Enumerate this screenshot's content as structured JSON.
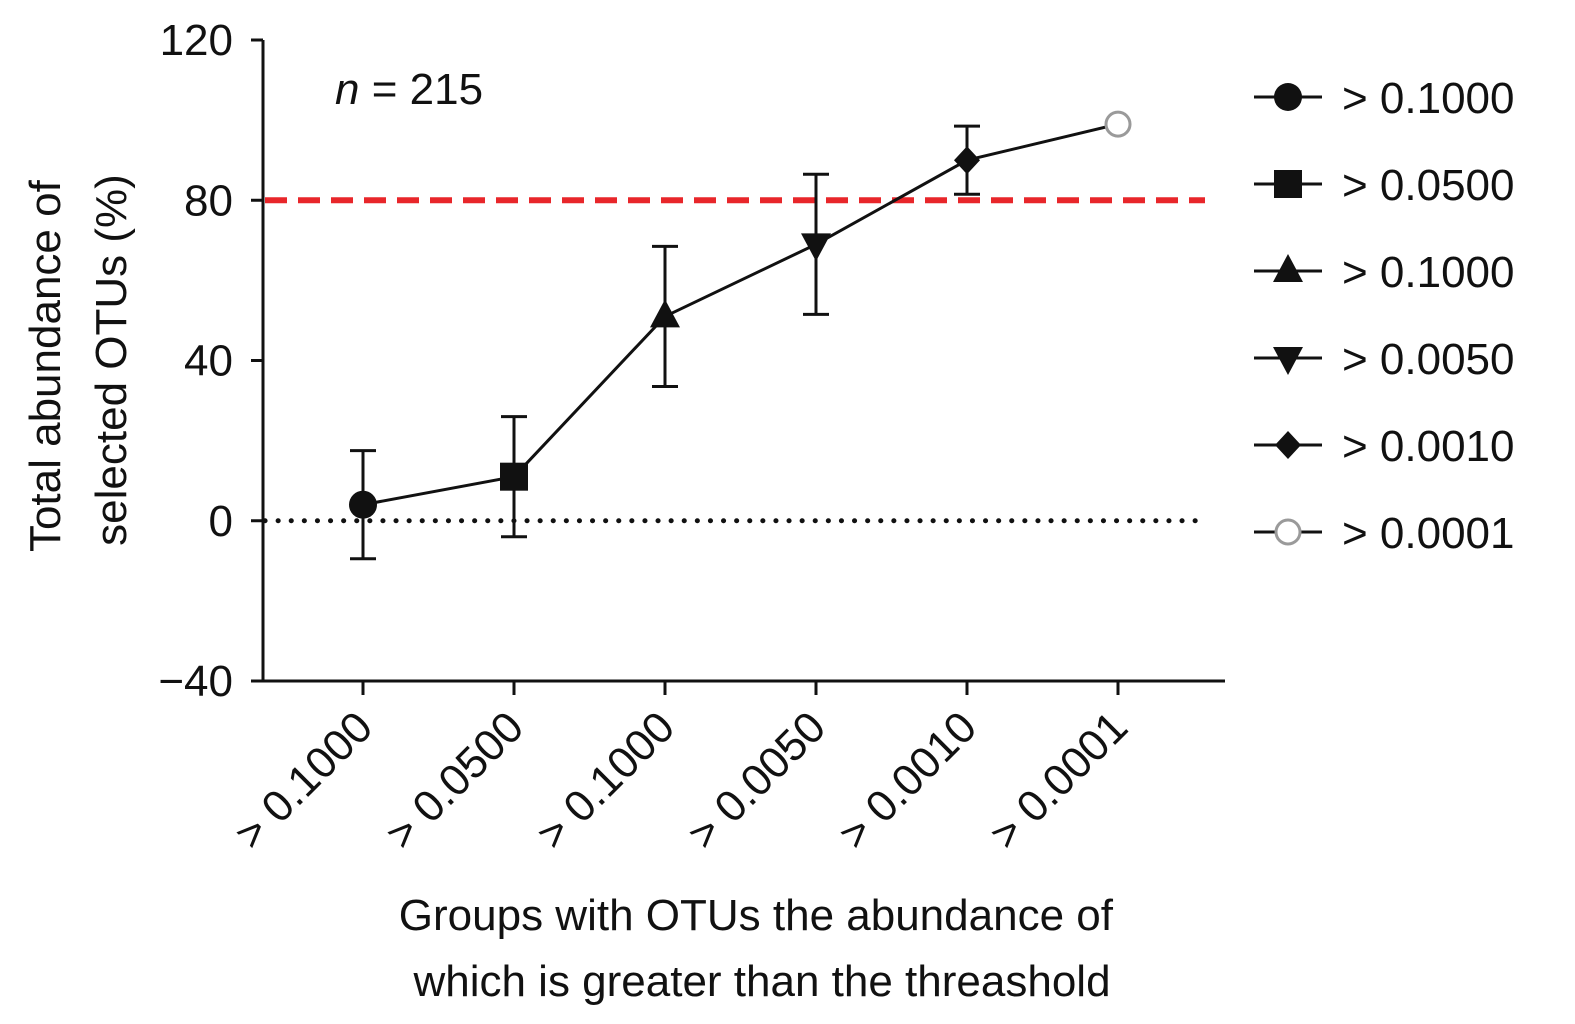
{
  "chart_data": {
    "type": "line",
    "annotation": {
      "italic": "n",
      "rest": " = 215"
    },
    "xlabel_lines": [
      "Groups with OTUs the abundance of",
      "which is greater than the threashold"
    ],
    "ylabel_lines": [
      "Total abundance of",
      "selected OTUs (%)"
    ],
    "ylim": [
      -40,
      120
    ],
    "yticks": [
      {
        "value": 120,
        "label": "120"
      },
      {
        "value": 80,
        "label": "80"
      },
      {
        "value": 40,
        "label": "40"
      },
      {
        "value": 0,
        "label": "0"
      },
      {
        "value": -40,
        "label": "−40"
      }
    ],
    "categories": [
      "> 0.1000",
      "> 0.0500",
      "> 0.1000",
      "> 0.0050",
      "> 0.0010",
      "> 0.0001"
    ],
    "points": [
      {
        "category": "> 0.1000",
        "y": 4,
        "err": 13.5,
        "marker": "circle",
        "label": "> 0.1000"
      },
      {
        "category": "> 0.0500",
        "y": 11,
        "err": 15,
        "marker": "square",
        "label": "> 0.0500"
      },
      {
        "category": "> 0.1000",
        "y": 51,
        "err": 17.5,
        "marker": "triangle-up",
        "label": "> 0.1000"
      },
      {
        "category": "> 0.0050",
        "y": 69,
        "err": 17.5,
        "marker": "triangle-down",
        "label": "> 0.0050"
      },
      {
        "category": "> 0.0010",
        "y": 90,
        "err": 8.5,
        "marker": "diamond",
        "label": "> 0.0010"
      },
      {
        "category": "> 0.0001",
        "y": 99,
        "err": 0.5,
        "marker": "open-circle",
        "label": "> 0.0001"
      }
    ],
    "reference_lines": [
      {
        "y": 80,
        "style": "dashed",
        "color": "#e8262a"
      },
      {
        "y": 0,
        "style": "dotted",
        "color": "#111111"
      }
    ],
    "legend_position": "right",
    "grid": false,
    "colors": {
      "line": "#111111",
      "marker": "#111111",
      "open_marker": "#9a9a9a",
      "threshold": "#e8262a"
    }
  }
}
